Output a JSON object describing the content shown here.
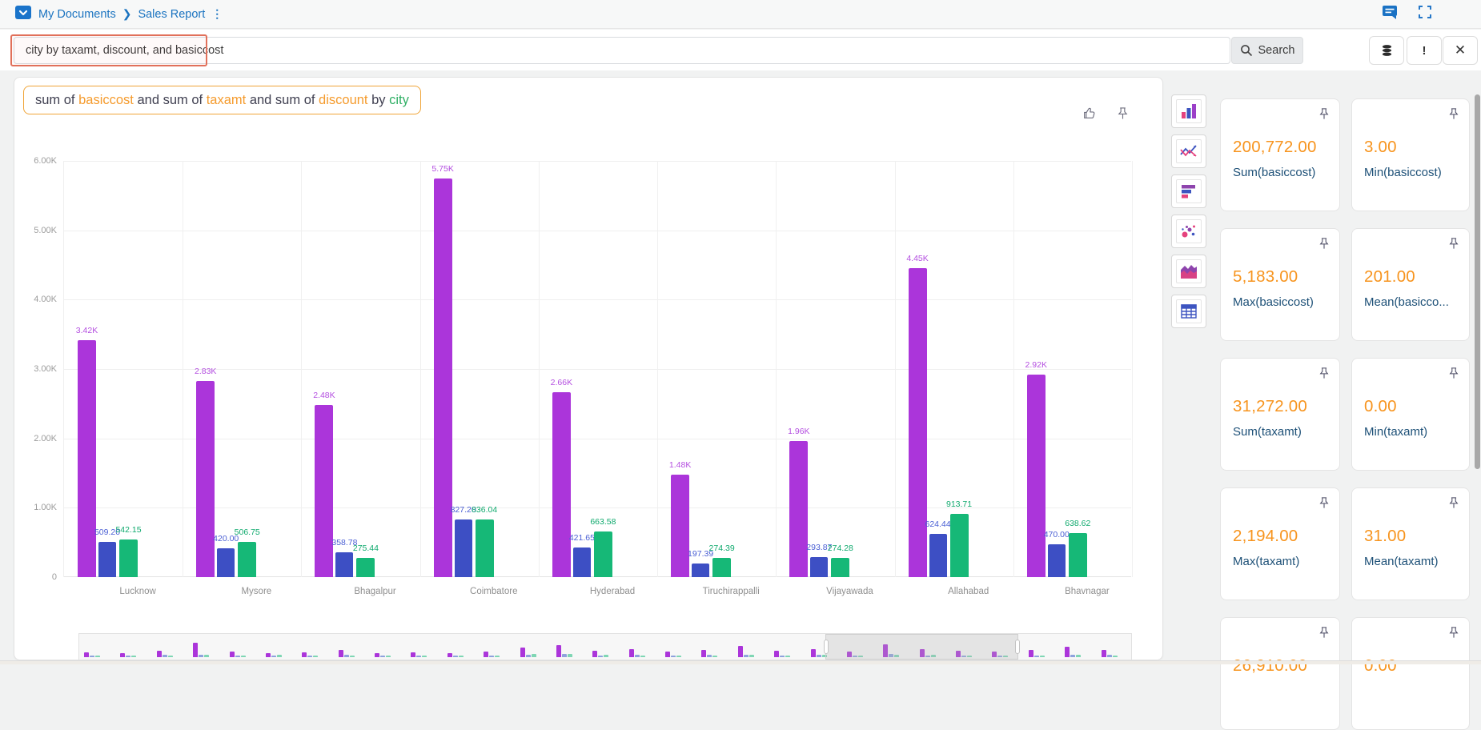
{
  "topbar": {
    "breadcrumb": [
      "My Documents",
      "Sales Report"
    ],
    "icons": [
      "folder-icon",
      "message-icon",
      "fullscreen-icon"
    ]
  },
  "search": {
    "query": "city by taxamt, discount, and basiccost",
    "button_label": "Search",
    "side_buttons": [
      "data-source-icon",
      "exclamation-icon",
      "close-icon"
    ],
    "highlight_color": "#e1705a"
  },
  "title": {
    "segments": [
      {
        "text": "sum of ",
        "color": "#3f3f50"
      },
      {
        "text": "basiccost",
        "color": "#f59b2d"
      },
      {
        "text": " and sum of ",
        "color": "#3f3f50"
      },
      {
        "text": "taxamt",
        "color": "#f59b2d"
      },
      {
        "text": " and sum of ",
        "color": "#3f3f50"
      },
      {
        "text": "discount",
        "color": "#f59b2d"
      },
      {
        "text": " by ",
        "color": "#3f3f50"
      },
      {
        "text": "city",
        "color": "#2eaf64"
      }
    ]
  },
  "chart_data": {
    "type": "bar",
    "title": "sum of basiccost and sum of taxamt and sum of discount by city",
    "categories": [
      "Lucknow",
      "Mysore",
      "Bhagalpur",
      "Coimbatore",
      "Hyderabad",
      "Tiruchirappalli",
      "Vijayawada",
      "Allahabad",
      "Bhavnagar"
    ],
    "series": [
      {
        "name": "sum basiccost",
        "color": "#ab35da",
        "label_color": "#b44fe0",
        "values": [
          3420,
          2830,
          2480,
          5750,
          2660,
          1480,
          1960,
          4450,
          2920
        ],
        "labels": [
          "3.42K",
          "2.83K",
          "2.48K",
          "5.75K",
          "2.66K",
          "1.48K",
          "1.96K",
          "4.45K",
          "2.92K"
        ]
      },
      {
        "name": "sum taxamt",
        "color": "#3d4fc4",
        "label_color": "#4a5fd4",
        "values": [
          509.2,
          420.0,
          358.78,
          827.2,
          421.65,
          197.39,
          293.87,
          624.44,
          470.0
        ],
        "labels": [
          "509.20",
          "420.00",
          "358.78",
          "827.20",
          "421.65",
          "197.39",
          "293.87",
          "624.44",
          "470.00"
        ]
      },
      {
        "name": "sum discount",
        "color": "#16b877",
        "label_color": "#10aa6e",
        "values": [
          542.15,
          506.75,
          275.44,
          836.04,
          663.58,
          274.39,
          274.28,
          913.71,
          638.62
        ],
        "labels": [
          "542.15",
          "506.75",
          "275.44",
          "836.04",
          "663.58",
          "274.39",
          "274.28",
          "913.71",
          "638.62"
        ]
      }
    ],
    "ylim": [
      0,
      6000
    ],
    "yticks": [
      "6.00K",
      "5.00K",
      "4.00K",
      "3.00K",
      "2.00K",
      "1.00K",
      "0"
    ],
    "grid": true,
    "legend": "none"
  },
  "chart_type_buttons": [
    "column-chart",
    "line-chart",
    "horizontal-bar-chart",
    "scatter-chart",
    "area-chart",
    "table-view"
  ],
  "cards": [
    {
      "value": "200,772.00",
      "label": "Sum(basiccost)"
    },
    {
      "value": "3.00",
      "label": "Min(basiccost)"
    },
    {
      "value": "5,183.00",
      "label": "Max(basiccost)"
    },
    {
      "value": "201.00",
      "label": "Mean(basicco..."
    },
    {
      "value": "31,272.00",
      "label": "Sum(taxamt)"
    },
    {
      "value": "0.00",
      "label": "Min(taxamt)"
    },
    {
      "value": "2,194.00",
      "label": "Max(taxamt)"
    },
    {
      "value": "31.00",
      "label": "Mean(taxamt)"
    },
    {
      "value": "26,910.00",
      "label": ""
    },
    {
      "value": "0.00",
      "label": ""
    }
  ],
  "navigator": {
    "brush_start_pct": 70.9,
    "brush_width_pct": 18.4,
    "clusters": [
      [
        6,
        2,
        2
      ],
      [
        5,
        2,
        2
      ],
      [
        8,
        3,
        2
      ],
      [
        18,
        3,
        3
      ],
      [
        7,
        2,
        2
      ],
      [
        5,
        2,
        3
      ],
      [
        6,
        2,
        2
      ],
      [
        9,
        3,
        2
      ],
      [
        5,
        2,
        2
      ],
      [
        6,
        2,
        2
      ],
      [
        5,
        2,
        2
      ],
      [
        7,
        2,
        2
      ],
      [
        12,
        3,
        4
      ],
      [
        15,
        4,
        4
      ],
      [
        8,
        2,
        3
      ],
      [
        10,
        3,
        2
      ],
      [
        7,
        2,
        2
      ],
      [
        9,
        3,
        2
      ],
      [
        14,
        3,
        3
      ],
      [
        8,
        2,
        2
      ],
      [
        10,
        3,
        3
      ],
      [
        7,
        2,
        2
      ],
      [
        16,
        4,
        3
      ],
      [
        10,
        2,
        3
      ],
      [
        8,
        2,
        2
      ],
      [
        7,
        2,
        2
      ],
      [
        9,
        2,
        2
      ],
      [
        13,
        3,
        3
      ],
      [
        9,
        3,
        2
      ]
    ],
    "colors": [
      "#ab35da",
      "#8fa2dd",
      "#7fd6b4"
    ]
  }
}
